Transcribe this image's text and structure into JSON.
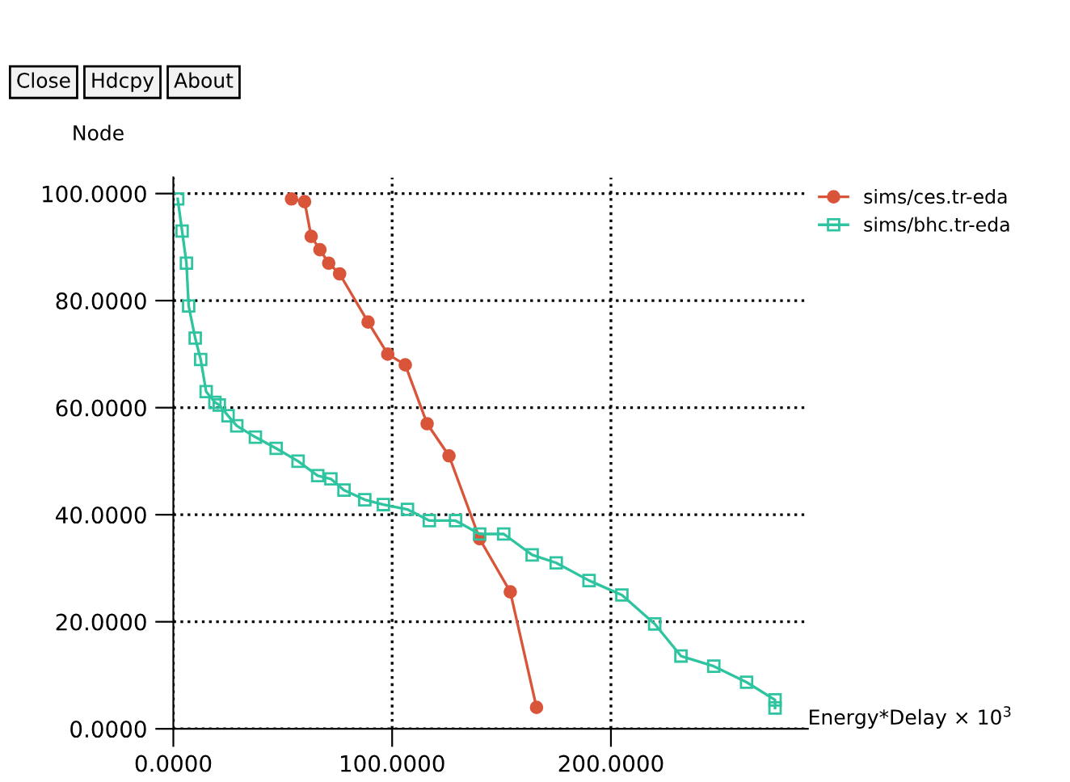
{
  "chart_data": {
    "type": "line",
    "xlabel": "Energy*Delay × 10$^{3}$",
    "ylabel": "Node",
    "annotations": [
      "Close",
      "Hdcpy",
      "About"
    ],
    "xlim": [
      0,
      290
    ],
    "ylim": [
      0,
      103
    ],
    "xticks": [
      {
        "value": 0,
        "label": "0.0000"
      },
      {
        "value": 100,
        "label": "100.0000"
      },
      {
        "value": 200,
        "label": "200.0000"
      }
    ],
    "yticks": [
      {
        "value": 0,
        "label": "0.0000"
      },
      {
        "value": 20,
        "label": "20.0000"
      },
      {
        "value": 40,
        "label": "40.0000"
      },
      {
        "value": 60,
        "label": "60.0000"
      },
      {
        "value": 80,
        "label": "80.0000"
      },
      {
        "value": 100,
        "label": "100.0000"
      }
    ],
    "grid": true,
    "legend": "top right",
    "series": [
      {
        "name": "sims/ces.tr-eda",
        "color": "#d9553a",
        "marker": "circle",
        "x": [
          54,
          60,
          63,
          67,
          71,
          76,
          89,
          98,
          106,
          116,
          126,
          140,
          154,
          166
        ],
        "values": [
          99,
          98.5,
          92,
          89.5,
          87,
          85,
          76,
          70,
          68,
          57,
          51,
          35.5,
          25.6,
          4
        ]
      },
      {
        "name": "sims/bhc.tr-eda",
        "color": "#2ec4a0",
        "marker": "square",
        "x": [
          2,
          4,
          6,
          7,
          10,
          12.5,
          15,
          19,
          21,
          25,
          29,
          37.5,
          47,
          57,
          66,
          72,
          78,
          87.5,
          96,
          107,
          117,
          129,
          140,
          151,
          164,
          175,
          190,
          205,
          220,
          232,
          247,
          262,
          275,
          275
        ],
        "values": [
          99,
          93,
          87,
          79,
          73,
          69,
          63,
          61,
          60.5,
          58.5,
          56.6,
          54.5,
          52.4,
          50,
          47.3,
          46.7,
          44.6,
          42.8,
          41.9,
          41,
          38.9,
          38.9,
          36.4,
          36.4,
          32.5,
          31,
          27.7,
          25,
          19.6,
          13.6,
          11.7,
          8.7,
          5.4,
          3.9
        ]
      }
    ]
  }
}
